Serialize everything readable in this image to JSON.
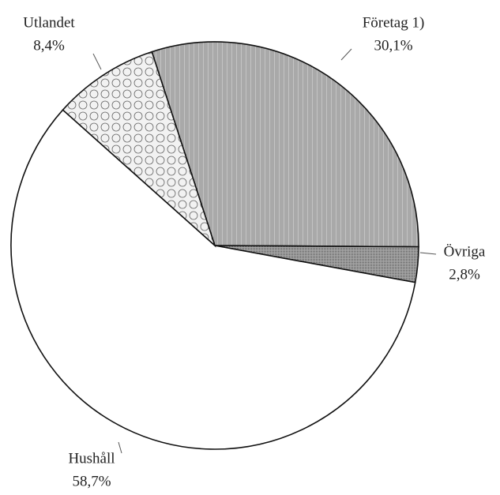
{
  "chart_data": {
    "type": "pie",
    "categories": [
      "Företag 1)",
      "Övriga",
      "Hushåll",
      "Utlandet"
    ],
    "values": [
      30.1,
      2.8,
      58.7,
      8.4
    ],
    "value_labels": [
      "30,1%",
      "2,8%",
      "58,7%",
      "8,4%"
    ],
    "colors": [
      "#c4c4c4",
      "#a8a8a8",
      "#ffffff",
      "#f2f2f2"
    ]
  }
}
